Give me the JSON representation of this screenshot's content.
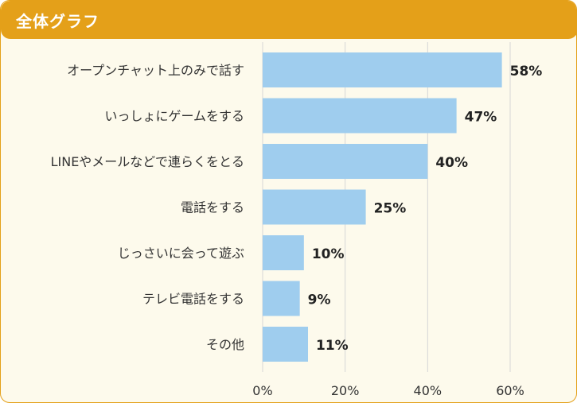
{
  "header": {
    "title": "全体グラフ"
  },
  "colors": {
    "accent": "#e4a019",
    "bar": "#9fcdee",
    "background": "#fdfaec",
    "grid": "#d6d6d6"
  },
  "chart_data": {
    "type": "bar",
    "orientation": "horizontal",
    "title": "全体グラフ",
    "categories": [
      "オープンチャット上のみで話す",
      "いっしょにゲームをする",
      "LINEやメールなどで連らくをとる",
      "電話をする",
      "じっさいに会って遊ぶ",
      "テレビ電話をする",
      "その他"
    ],
    "values": [
      58,
      47,
      40,
      25,
      10,
      9,
      11
    ],
    "value_labels": [
      "58%",
      "47%",
      "40%",
      "25%",
      "10%",
      "9%",
      "11%"
    ],
    "xlim": [
      0,
      60
    ],
    "ticks": [
      0,
      20,
      40,
      60
    ],
    "tick_labels": [
      "0%",
      "20%",
      "40%",
      "60%"
    ],
    "xlabel": "",
    "ylabel": "",
    "grid": true
  }
}
